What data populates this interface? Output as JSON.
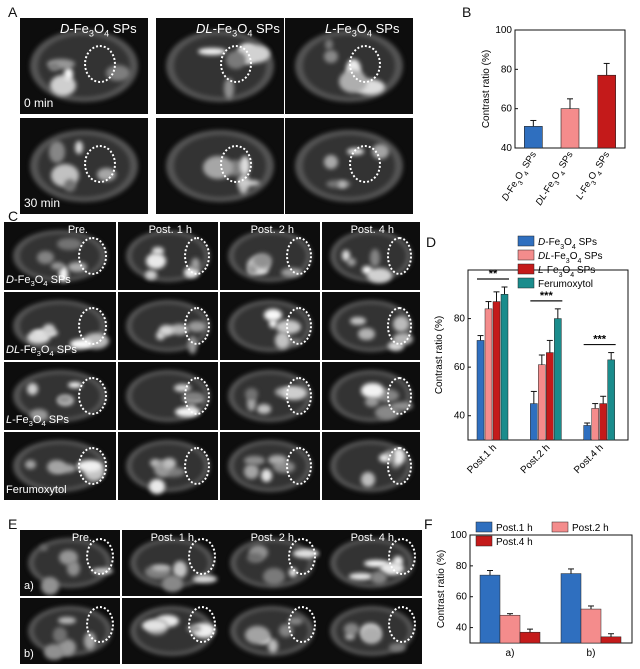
{
  "panels": {
    "A": "A",
    "B": "B",
    "C": "C",
    "D": "D",
    "E": "E",
    "F": "F"
  },
  "panelA": {
    "columns": [
      {
        "prefix": "D",
        "text": "-Fe",
        "sub": "3",
        "text2": "O",
        "sub2": "4",
        "suffix": " SPs"
      },
      {
        "prefix": "DL",
        "text": "-Fe",
        "sub": "3",
        "text2": "O",
        "sub2": "4",
        "suffix": " SPs"
      },
      {
        "prefix": "L",
        "text": "-Fe",
        "sub": "3",
        "text2": "O",
        "sub2": "4",
        "suffix": " SPs"
      }
    ],
    "rows": [
      "0 min",
      "30 min"
    ]
  },
  "panelC": {
    "timepoints": [
      "Pre.",
      "Post. 1 h",
      "Post. 2 h",
      "Post. 4 h"
    ],
    "rows": [
      {
        "prefix": "D",
        "rest": "-Fe3O4 SPs"
      },
      {
        "prefix": "DL",
        "rest": "-Fe3O4 SPs"
      },
      {
        "prefix": "L",
        "rest": "-Fe3O4 SPs"
      },
      {
        "prefix": "",
        "rest": "Ferumoxytol"
      }
    ]
  },
  "panelE": {
    "timepoints": [
      "Pre.",
      "Post. 1 h",
      "Post. 2 h",
      "Post. 4 h"
    ],
    "rows": [
      "a)",
      "b)"
    ]
  },
  "colors": {
    "blue": "#2f6fbf",
    "pink": "#f48c8c",
    "red": "#c41a1a",
    "teal": "#1a8c8c"
  },
  "chart_data": [
    {
      "id": "B",
      "type": "bar",
      "categories": [
        "D-Fe3O4 SPs",
        "DL-Fe3O4 SPs",
        "L-Fe3O4 SPs"
      ],
      "values": [
        51,
        60,
        77
      ],
      "errors": [
        3,
        5,
        6
      ],
      "ylabel": "Contrast ratio  (%)",
      "ylim": [
        40,
        100
      ],
      "yticks": [
        "40",
        "60",
        "80",
        "100"
      ]
    },
    {
      "id": "D",
      "type": "bar",
      "categories": [
        "Post.1 h",
        "Post.2 h",
        "Post.4 h"
      ],
      "series": [
        {
          "name": "D-Fe3O4 SPs",
          "values": [
            71,
            45,
            36
          ],
          "errors": [
            2,
            5,
            1
          ]
        },
        {
          "name": "DL-Fe3O4 SPs",
          "values": [
            84,
            61,
            43
          ],
          "errors": [
            3,
            4,
            2
          ]
        },
        {
          "name": "L-Fe3O4 SPs",
          "values": [
            87,
            66,
            45
          ],
          "errors": [
            4,
            5,
            3
          ]
        },
        {
          "name": "Ferumoxytol",
          "values": [
            90,
            80,
            63
          ],
          "errors": [
            3,
            4,
            3
          ]
        }
      ],
      "ylabel": "Contrast ratio  (%)",
      "ylim": [
        30,
        100
      ],
      "yticks": [
        "40",
        "60",
        "80"
      ],
      "significance": [
        "**",
        "***",
        "***"
      ]
    },
    {
      "id": "F",
      "type": "bar",
      "categories": [
        "a)",
        "b)"
      ],
      "series": [
        {
          "name": "Post.1 h",
          "values": [
            74,
            75
          ],
          "errors": [
            3,
            3
          ]
        },
        {
          "name": "Post.2 h",
          "values": [
            48,
            52
          ],
          "errors": [
            1,
            2
          ]
        },
        {
          "name": "Post.4 h",
          "values": [
            37,
            34
          ],
          "errors": [
            2,
            2
          ]
        }
      ],
      "ylabel": "Contrast ratio  (%)",
      "ylim": [
        30,
        100
      ],
      "yticks": [
        "40",
        "60",
        "80",
        "100"
      ]
    }
  ]
}
